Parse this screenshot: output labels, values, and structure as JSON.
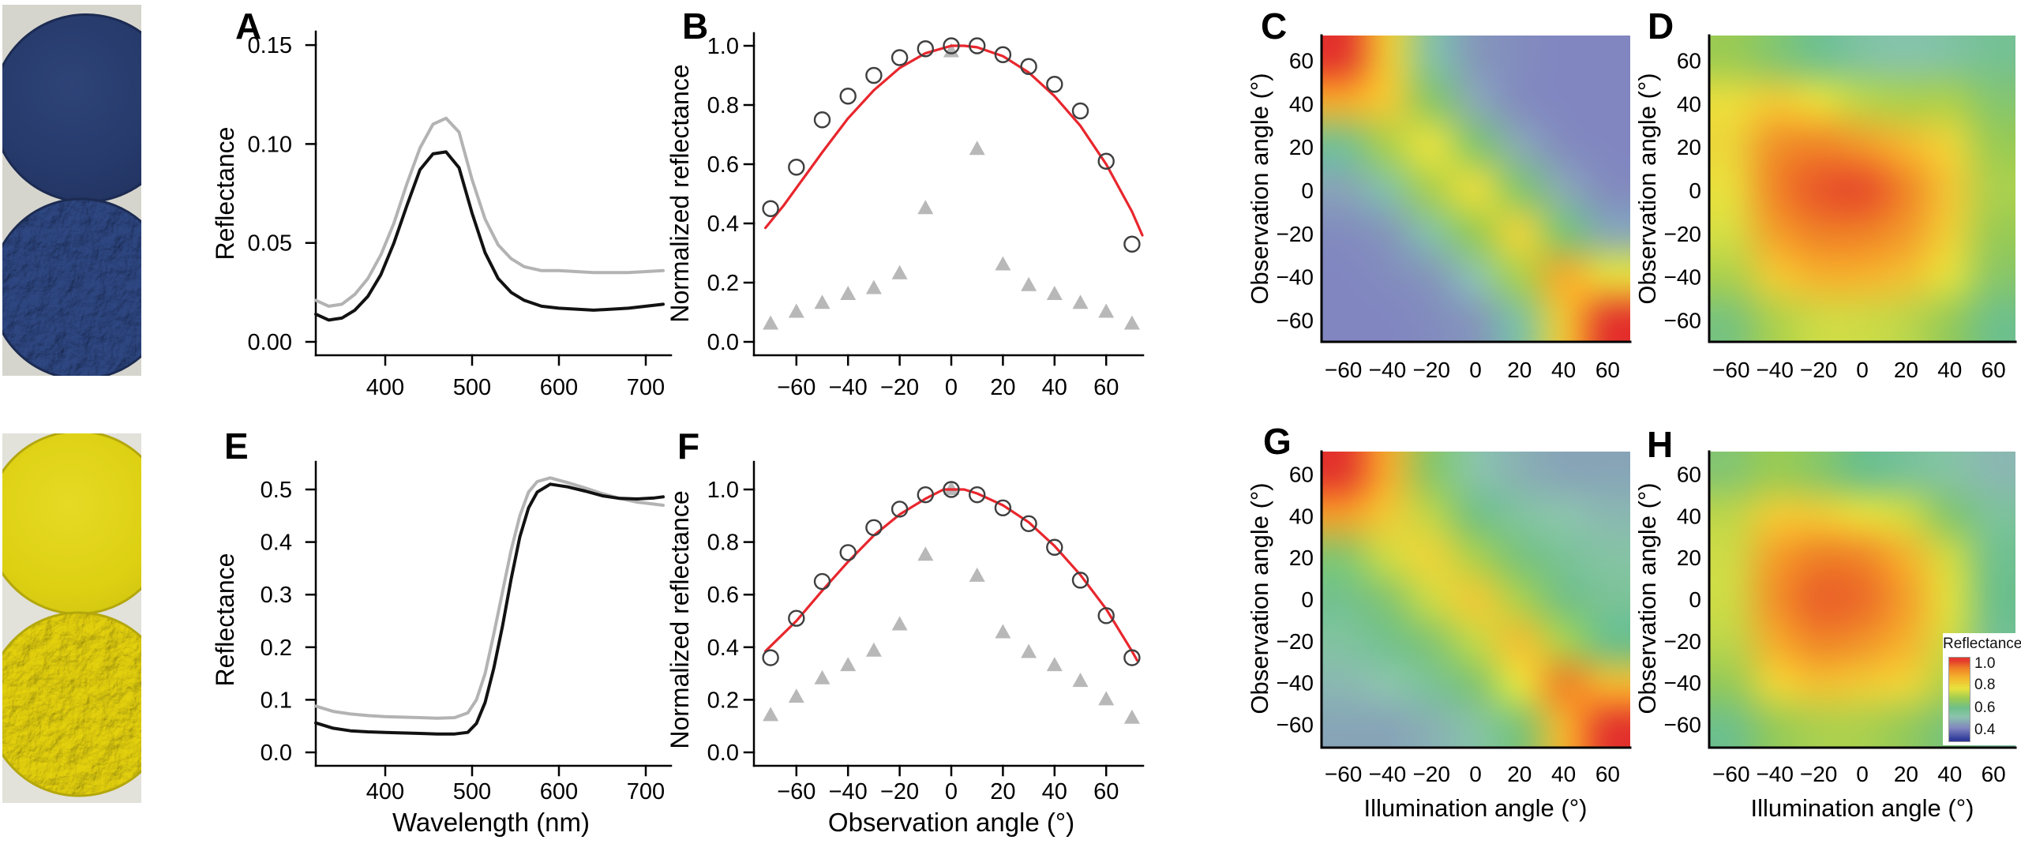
{
  "figure": {
    "background": "#ffffff",
    "panels": [
      {
        "letter": "A"
      },
      {
        "letter": "B"
      },
      {
        "letter": "C"
      },
      {
        "letter": "D"
      },
      {
        "letter": "E"
      },
      {
        "letter": "F"
      },
      {
        "letter": "G"
      },
      {
        "letter": "H"
      }
    ]
  },
  "photos": {
    "blue": {
      "background": "#d6d5cd",
      "smooth_disc_color": "#263a6b",
      "smooth_disc_edge": "#1c2b52",
      "textured_disc_color": "#46619b",
      "texture_light": "#b6c2da"
    },
    "yellow": {
      "background": "#e2e1da",
      "smooth_disc_color": "#ddd012",
      "smooth_disc_edge": "#b3a70d",
      "textured_disc_color": "#e5d818",
      "texture_light": "#fff8b0"
    }
  },
  "colormap": [
    [
      0.3,
      "#2f3a9a"
    ],
    [
      0.4,
      "#8186c0"
    ],
    [
      0.5,
      "#8cc4ad"
    ],
    [
      0.58,
      "#6fc08a"
    ],
    [
      0.66,
      "#9ccb53"
    ],
    [
      0.75,
      "#e8e23e"
    ],
    [
      0.85,
      "#f5b32d"
    ],
    [
      0.93,
      "#ef8026"
    ],
    [
      1.0,
      "#e4392c"
    ]
  ],
  "chart_data": [
    {
      "id": "A",
      "type": "line",
      "title": "",
      "xlabel": "",
      "ylabel": "Reflectance",
      "xlim": [
        320,
        720
      ],
      "ylim": [
        0,
        0.155
      ],
      "xticks": [
        "400",
        "500",
        "600",
        "700"
      ],
      "xtick_values": [
        400,
        500,
        600,
        700
      ],
      "yticks": [
        "0.00",
        "0.05",
        "0.10",
        "0.15"
      ],
      "ytick_values": [
        0,
        0.05,
        0.1,
        0.15
      ],
      "series": [
        {
          "name": "gray-curve",
          "color": "#b3b3b3",
          "x": [
            320,
            335,
            350,
            365,
            380,
            395,
            410,
            425,
            440,
            455,
            470,
            485,
            500,
            515,
            530,
            545,
            560,
            580,
            600,
            640,
            680,
            720
          ],
          "y": [
            0.021,
            0.018,
            0.019,
            0.024,
            0.032,
            0.044,
            0.06,
            0.08,
            0.098,
            0.11,
            0.113,
            0.106,
            0.082,
            0.062,
            0.049,
            0.042,
            0.038,
            0.036,
            0.036,
            0.035,
            0.035,
            0.036
          ]
        },
        {
          "name": "black-curve",
          "color": "#121212",
          "x": [
            320,
            335,
            350,
            365,
            380,
            395,
            410,
            425,
            440,
            455,
            470,
            485,
            500,
            515,
            530,
            545,
            560,
            580,
            600,
            640,
            680,
            720
          ],
          "y": [
            0.014,
            0.011,
            0.012,
            0.016,
            0.023,
            0.034,
            0.05,
            0.069,
            0.087,
            0.095,
            0.096,
            0.088,
            0.065,
            0.045,
            0.032,
            0.025,
            0.021,
            0.018,
            0.017,
            0.016,
            0.017,
            0.019
          ]
        }
      ]
    },
    {
      "id": "B",
      "type": "scatter",
      "title": "",
      "xlabel": "",
      "ylabel": "Normalized reflectance",
      "xlim": [
        -75,
        76
      ],
      "ylim": [
        0,
        1.04
      ],
      "xticks": [
        "−60",
        "−40",
        "−20",
        "0",
        "20",
        "40",
        "60"
      ],
      "xtick_values": [
        -60,
        -40,
        -20,
        0,
        20,
        40,
        60
      ],
      "yticks": [
        "0.0",
        "0.2",
        "0.4",
        "0.6",
        "0.8",
        "1.0"
      ],
      "ytick_values": [
        0,
        0.2,
        0.4,
        0.6,
        0.8,
        1.0
      ],
      "angles": [
        -70,
        -60,
        -50,
        -40,
        -30,
        -20,
        -10,
        0,
        10,
        20,
        30,
        40,
        50,
        60,
        70
      ],
      "circles": [
        0.45,
        0.59,
        0.75,
        0.83,
        0.9,
        0.96,
        0.99,
        1.0,
        1.0,
        0.97,
        0.93,
        0.87,
        0.78,
        0.61,
        0.33
      ],
      "triangles": [
        0.06,
        0.1,
        0.13,
        0.16,
        0.18,
        0.23,
        0.45,
        0.98,
        0.65,
        0.26,
        0.19,
        0.16,
        0.13,
        0.1,
        0.06
      ],
      "fit": {
        "color": "#e8262d",
        "x": [
          -72,
          -65,
          -60,
          -50,
          -40,
          -30,
          -20,
          -10,
          0,
          5,
          10,
          20,
          30,
          40,
          50,
          60,
          70,
          74
        ],
        "y": [
          0.385,
          0.46,
          0.52,
          0.64,
          0.755,
          0.85,
          0.925,
          0.975,
          1.0,
          1.0,
          0.995,
          0.965,
          0.91,
          0.83,
          0.73,
          0.6,
          0.44,
          0.36
        ]
      },
      "marker_colors": {
        "circle_stroke": "#3f3f3f",
        "triangle_fill": "#b8b8b8"
      }
    },
    {
      "id": "C",
      "type": "heatmap",
      "title": "",
      "xlabel": "",
      "ylabel": "Observation angle (°)",
      "xticks": [
        "−60",
        "−40",
        "−20",
        "0",
        "20",
        "40",
        "60"
      ],
      "xtick_values": [
        -60,
        -40,
        -20,
        0,
        20,
        40,
        60
      ],
      "yticks": [
        "60",
        "40",
        "20",
        "0",
        "−20",
        "−40",
        "−60"
      ],
      "ytick_values": [
        60,
        40,
        20,
        0,
        -20,
        -40,
        -60
      ],
      "grid_angles": [
        -60,
        -40,
        -20,
        0,
        20,
        40,
        60
      ],
      "rows_observation_top_to_bottom": [
        60,
        40,
        20,
        0,
        -20,
        -40,
        -60
      ],
      "values": [
        [
          1.0,
          0.8,
          0.52,
          0.43,
          0.41,
          0.4,
          0.4
        ],
        [
          0.86,
          0.8,
          0.63,
          0.46,
          0.41,
          0.4,
          0.4
        ],
        [
          0.56,
          0.68,
          0.75,
          0.62,
          0.46,
          0.41,
          0.4
        ],
        [
          0.45,
          0.52,
          0.68,
          0.76,
          0.62,
          0.46,
          0.41
        ],
        [
          0.41,
          0.43,
          0.52,
          0.66,
          0.78,
          0.61,
          0.46
        ],
        [
          0.4,
          0.41,
          0.43,
          0.5,
          0.68,
          0.86,
          0.76
        ],
        [
          0.4,
          0.4,
          0.41,
          0.43,
          0.53,
          0.81,
          1.0
        ]
      ]
    },
    {
      "id": "D",
      "type": "heatmap",
      "title": "",
      "xlabel": "",
      "ylabel": "Observation angle (°)",
      "xticks": [
        "−60",
        "−40",
        "−20",
        "0",
        "20",
        "40",
        "60"
      ],
      "xtick_values": [
        -60,
        -40,
        -20,
        0,
        20,
        40,
        60
      ],
      "yticks": [
        "60",
        "40",
        "20",
        "0",
        "−20",
        "−40",
        "−60"
      ],
      "ytick_values": [
        60,
        40,
        20,
        0,
        -20,
        -40,
        -60
      ],
      "grid_angles": [
        -60,
        -40,
        -20,
        0,
        20,
        40,
        60
      ],
      "rows_observation_top_to_bottom": [
        60,
        40,
        20,
        0,
        -20,
        -40,
        -60
      ],
      "values": [
        [
          0.66,
          0.62,
          0.57,
          0.53,
          0.51,
          0.53,
          0.56
        ],
        [
          0.76,
          0.8,
          0.76,
          0.7,
          0.68,
          0.68,
          0.62
        ],
        [
          0.78,
          0.9,
          0.92,
          0.89,
          0.84,
          0.78,
          0.66
        ],
        [
          0.76,
          0.92,
          0.97,
          0.98,
          0.92,
          0.81,
          0.68
        ],
        [
          0.73,
          0.88,
          0.93,
          0.93,
          0.89,
          0.79,
          0.66
        ],
        [
          0.68,
          0.8,
          0.85,
          0.85,
          0.82,
          0.74,
          0.63
        ],
        [
          0.6,
          0.68,
          0.72,
          0.72,
          0.7,
          0.65,
          0.58
        ]
      ]
    },
    {
      "id": "E",
      "type": "line",
      "title": "",
      "xlabel": "Wavelength (nm)",
      "ylabel": "Reflectance",
      "xlim": [
        320,
        720
      ],
      "ylim": [
        0,
        0.55
      ],
      "xticks": [
        "400",
        "500",
        "600",
        "700"
      ],
      "xtick_values": [
        400,
        500,
        600,
        700
      ],
      "yticks": [
        "0.0",
        "0.1",
        "0.2",
        "0.3",
        "0.4",
        "0.5"
      ],
      "ytick_values": [
        0,
        0.1,
        0.2,
        0.3,
        0.4,
        0.5
      ],
      "series": [
        {
          "name": "gray-curve",
          "color": "#b3b3b3",
          "x": [
            320,
            340,
            360,
            380,
            400,
            420,
            440,
            460,
            480,
            495,
            505,
            515,
            525,
            535,
            545,
            555,
            565,
            575,
            590,
            610,
            630,
            650,
            670,
            690,
            710,
            720
          ],
          "y": [
            0.088,
            0.078,
            0.073,
            0.07,
            0.068,
            0.067,
            0.066,
            0.065,
            0.066,
            0.075,
            0.1,
            0.15,
            0.225,
            0.305,
            0.385,
            0.45,
            0.495,
            0.515,
            0.522,
            0.513,
            0.503,
            0.492,
            0.483,
            0.476,
            0.472,
            0.47
          ]
        },
        {
          "name": "black-curve",
          "color": "#121212",
          "x": [
            320,
            340,
            360,
            380,
            400,
            420,
            440,
            460,
            480,
            495,
            505,
            515,
            525,
            535,
            545,
            555,
            565,
            575,
            590,
            610,
            630,
            650,
            670,
            690,
            710,
            720
          ],
          "y": [
            0.056,
            0.046,
            0.041,
            0.039,
            0.038,
            0.037,
            0.036,
            0.035,
            0.035,
            0.038,
            0.055,
            0.095,
            0.16,
            0.24,
            0.33,
            0.41,
            0.465,
            0.495,
            0.51,
            0.505,
            0.497,
            0.488,
            0.483,
            0.482,
            0.484,
            0.486
          ]
        }
      ]
    },
    {
      "id": "F",
      "type": "scatter",
      "title": "",
      "xlabel": "Observation angle (°)",
      "ylabel": "Normalized reflectance",
      "xlim": [
        -75,
        76
      ],
      "ylim": [
        0,
        1.04
      ],
      "xticks": [
        "−60",
        "−40",
        "−20",
        "0",
        "20",
        "40",
        "60"
      ],
      "xtick_values": [
        -60,
        -40,
        -20,
        0,
        20,
        40,
        60
      ],
      "yticks": [
        "0.0",
        "0.2",
        "0.4",
        "0.6",
        "0.8",
        "1.0"
      ],
      "ytick_values": [
        0,
        0.2,
        0.4,
        0.6,
        0.8,
        1.0
      ],
      "angles": [
        -70,
        -60,
        -50,
        -40,
        -30,
        -20,
        -10,
        0,
        10,
        20,
        30,
        40,
        50,
        60,
        70
      ],
      "circles": [
        0.36,
        0.51,
        0.65,
        0.76,
        0.855,
        0.925,
        0.98,
        1.0,
        0.98,
        0.93,
        0.87,
        0.78,
        0.655,
        0.52,
        0.36
      ],
      "triangles": [
        0.14,
        0.21,
        0.28,
        0.33,
        0.385,
        0.485,
        0.75,
        1.0,
        0.67,
        0.455,
        0.38,
        0.33,
        0.27,
        0.2,
        0.13
      ],
      "fit": {
        "color": "#e8262d",
        "x": [
          -72,
          -60,
          -50,
          -40,
          -30,
          -20,
          -10,
          -3,
          5,
          10,
          20,
          30,
          40,
          50,
          60,
          70,
          72
        ],
        "y": [
          0.385,
          0.5,
          0.615,
          0.725,
          0.825,
          0.905,
          0.965,
          1.0,
          1.0,
          0.985,
          0.94,
          0.875,
          0.785,
          0.675,
          0.545,
          0.385,
          0.35
        ]
      },
      "marker_colors": {
        "circle_stroke": "#3f3f3f",
        "triangle_fill": "#b8b8b8"
      }
    },
    {
      "id": "G",
      "type": "heatmap",
      "title": "",
      "xlabel": "Illumination angle (°)",
      "ylabel": "Observation angle (°)",
      "xticks": [
        "−60",
        "−40",
        "−20",
        "0",
        "20",
        "40",
        "60"
      ],
      "xtick_values": [
        -60,
        -40,
        -20,
        0,
        20,
        40,
        60
      ],
      "yticks": [
        "60",
        "40",
        "20",
        "0",
        "−20",
        "−40",
        "−60"
      ],
      "ytick_values": [
        60,
        40,
        20,
        0,
        -20,
        -40,
        -60
      ],
      "grid_angles": [
        -60,
        -40,
        -20,
        0,
        20,
        40,
        60
      ],
      "rows_observation_top_to_bottom": [
        60,
        40,
        20,
        0,
        -20,
        -40,
        -60
      ],
      "values": [
        [
          1.0,
          0.86,
          0.63,
          0.51,
          0.47,
          0.45,
          0.45
        ],
        [
          0.88,
          0.8,
          0.7,
          0.59,
          0.53,
          0.5,
          0.48
        ],
        [
          0.62,
          0.72,
          0.78,
          0.68,
          0.6,
          0.55,
          0.52
        ],
        [
          0.57,
          0.62,
          0.72,
          0.8,
          0.68,
          0.59,
          0.55
        ],
        [
          0.53,
          0.57,
          0.62,
          0.71,
          0.82,
          0.68,
          0.58
        ],
        [
          0.48,
          0.5,
          0.55,
          0.62,
          0.75,
          0.92,
          0.84
        ],
        [
          0.45,
          0.45,
          0.47,
          0.52,
          0.61,
          0.85,
          1.0
        ]
      ]
    },
    {
      "id": "H",
      "type": "heatmap",
      "title": "",
      "xlabel": "Illumination angle (°)",
      "ylabel": "Observation angle (°)",
      "xticks": [
        "−60",
        "−40",
        "−20",
        "0",
        "20",
        "40",
        "60"
      ],
      "xtick_values": [
        -60,
        -40,
        -20,
        0,
        20,
        40,
        60
      ],
      "yticks": [
        "60",
        "40",
        "20",
        "0",
        "−20",
        "−40",
        "−60"
      ],
      "ytick_values": [
        60,
        40,
        20,
        0,
        -20,
        -40,
        -60
      ],
      "grid_angles": [
        -60,
        -40,
        -20,
        0,
        20,
        40,
        60
      ],
      "rows_observation_top_to_bottom": [
        60,
        40,
        20,
        0,
        -20,
        -40,
        -60
      ],
      "values": [
        [
          0.62,
          0.66,
          0.63,
          0.58,
          0.55,
          0.52,
          0.48
        ],
        [
          0.7,
          0.8,
          0.8,
          0.76,
          0.72,
          0.62,
          0.54
        ],
        [
          0.72,
          0.88,
          0.93,
          0.92,
          0.85,
          0.72,
          0.57
        ],
        [
          0.72,
          0.9,
          0.96,
          0.95,
          0.88,
          0.74,
          0.58
        ],
        [
          0.7,
          0.86,
          0.92,
          0.9,
          0.85,
          0.72,
          0.56
        ],
        [
          0.65,
          0.78,
          0.82,
          0.8,
          0.78,
          0.68,
          0.55
        ],
        [
          0.58,
          0.65,
          0.68,
          0.68,
          0.65,
          0.6,
          0.52
        ]
      ],
      "legend": {
        "title": "Reflectance",
        "tick_labels": [
          "1.0",
          "0.8",
          "0.6",
          "0.4"
        ]
      }
    }
  ]
}
